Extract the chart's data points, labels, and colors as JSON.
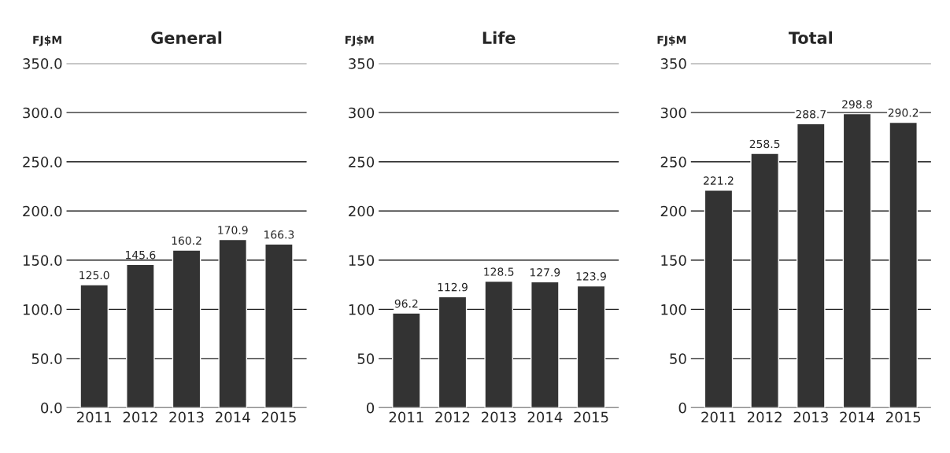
{
  "chart_data": [
    {
      "type": "bar",
      "title": "General",
      "ylabel": "FJ$M",
      "categories": [
        "2011",
        "2012",
        "2013",
        "2014",
        "2015"
      ],
      "values": [
        125.0,
        145.6,
        160.2,
        170.9,
        166.3
      ],
      "value_labels": [
        "125.0",
        "145.6",
        "160.2",
        "170.9",
        "166.3"
      ],
      "color": "#333333",
      "ylim": [
        0,
        350
      ],
      "yticks": [
        {
          "value": 0,
          "label": "0.0"
        },
        {
          "value": 50,
          "label": "50.0"
        },
        {
          "value": 100,
          "label": "100.0"
        },
        {
          "value": 150,
          "label": "150.0"
        },
        {
          "value": 200,
          "label": "200.0"
        },
        {
          "value": 250,
          "label": "250.0"
        },
        {
          "value": 300,
          "label": "300.0"
        },
        {
          "value": 350,
          "label": "350.0"
        }
      ],
      "grid": "y"
    },
    {
      "type": "bar",
      "title": "Life",
      "ylabel": "FJ$M",
      "categories": [
        "2011",
        "2012",
        "2013",
        "2014",
        "2015"
      ],
      "values": [
        96.2,
        112.9,
        128.5,
        127.9,
        123.9
      ],
      "data_labels": true,
      "color": "#333333",
      "ylim": [
        0,
        350
      ],
      "yticks": [
        0,
        50,
        100,
        150,
        200,
        250,
        300,
        350
      ],
      "grid": "y"
    },
    {
      "type": "bar",
      "title": "Total",
      "ylabel": "FJ$M",
      "categories": [
        "2011",
        "2012",
        "2013",
        "2014",
        "2015"
      ],
      "values": [
        221.2,
        258.5,
        288.7,
        298.8,
        290.2
      ],
      "data_labels": true,
      "color": "#333333",
      "ylim": [
        0,
        350
      ],
      "yticks": [
        0,
        50,
        100,
        150,
        200,
        250,
        300,
        350
      ],
      "grid": "y"
    }
  ]
}
